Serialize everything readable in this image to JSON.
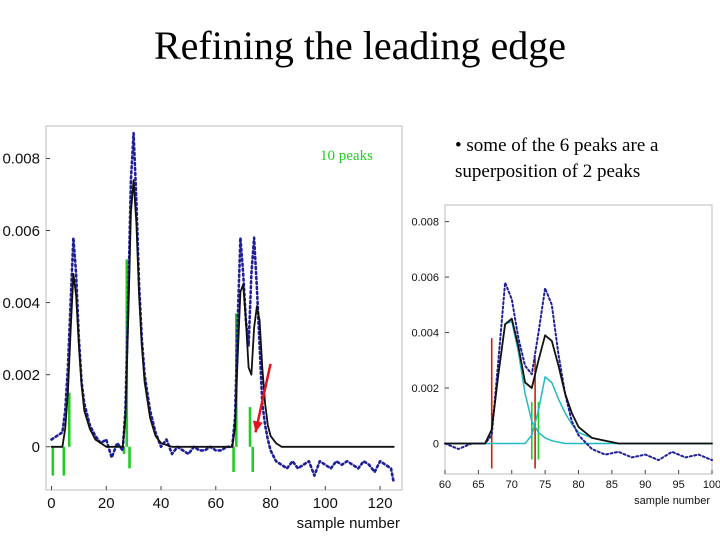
{
  "slide": {
    "title": "Refining the leading edge",
    "bullet": "• some of the 6 peaks are a superposition of 2 peaks"
  },
  "chart_data": [
    {
      "type": "line",
      "xlabel": "sample number",
      "ylabel": "",
      "xlim": [
        -2,
        128
      ],
      "ylim": [
        -0.0012,
        0.0089
      ],
      "xticks": [
        0,
        20,
        40,
        60,
        80,
        100,
        120
      ],
      "yticks": [
        0,
        0.002,
        0.004,
        0.006,
        0.008
      ],
      "ytick_labels": [
        "0",
        "0.002",
        "0.004",
        "0.006",
        "0.008"
      ],
      "annotation": "10 peaks",
      "colors": {
        "fit": "#111111",
        "data": "#1f1f9a",
        "peaks": "#22cc22",
        "arrow": "#e0141e"
      },
      "series": [
        {
          "style": "dotted",
          "x": [
            0,
            2,
            4,
            5,
            6,
            7,
            8,
            9,
            10,
            11,
            12,
            14,
            16,
            18,
            20,
            22,
            24,
            26,
            27,
            28,
            29,
            30,
            31,
            32,
            33,
            34,
            36,
            38,
            40,
            42,
            44,
            46,
            48,
            50,
            52,
            54,
            56,
            58,
            60,
            62,
            64,
            66,
            67,
            68,
            69,
            70,
            71,
            72,
            73,
            74,
            75,
            76,
            77,
            78,
            79,
            80,
            82,
            84,
            86,
            88,
            90,
            92,
            94,
            96,
            98,
            100,
            102,
            104,
            106,
            108,
            110,
            112,
            114,
            116,
            118,
            120,
            122,
            124,
            125
          ],
          "y": [
            0.0002,
            0.0003,
            0.0004,
            0.001,
            0.0022,
            0.004,
            0.0058,
            0.0048,
            0.003,
            0.0018,
            0.0012,
            0.0006,
            0.0003,
            0.0001,
            0.0002,
            -0.0003,
            0.0001,
            -0.0001,
            0.001,
            0.004,
            0.0074,
            0.0087,
            0.0068,
            0.0045,
            0.003,
            0.002,
            0.001,
            0.0004,
            0.0,
            0.0002,
            -0.0002,
            0.0,
            -0.0001,
            -0.0002,
            0.0,
            -0.0001,
            -0.0001,
            0.0,
            -0.0001,
            -0.0001,
            0.0,
            0.0,
            0.0008,
            0.0035,
            0.0058,
            0.0048,
            0.0035,
            0.0028,
            0.0048,
            0.0058,
            0.0044,
            0.0028,
            0.0012,
            0.0006,
            0.0002,
            -0.0001,
            -0.0004,
            -0.0005,
            -0.0006,
            -0.0004,
            -0.0006,
            -0.0005,
            -0.0004,
            -0.0008,
            -0.0004,
            -0.0005,
            -0.0006,
            -0.0004,
            -0.0005,
            -0.0004,
            -0.0005,
            -0.0006,
            -0.0004,
            -0.0005,
            -0.0007,
            -0.0004,
            -0.0005,
            -0.0006,
            -0.001
          ]
        },
        {
          "style": "solid",
          "x": [
            0,
            2,
            4,
            5,
            6,
            7,
            8,
            9,
            10,
            11,
            12,
            14,
            16,
            18,
            20,
            22,
            24,
            26,
            27,
            28,
            29,
            30,
            31,
            32,
            33,
            34,
            36,
            38,
            40,
            44,
            50,
            60,
            66,
            67,
            68,
            69,
            70,
            71,
            72,
            73,
            74,
            75,
            76,
            77,
            78,
            79,
            80,
            82,
            84,
            90,
            100,
            110,
            120,
            125
          ],
          "y": [
            0.0,
            0.0,
            0.0,
            0.0005,
            0.0015,
            0.0032,
            0.0048,
            0.0042,
            0.0028,
            0.0017,
            0.001,
            0.0005,
            0.0002,
            0.0001,
            0.0,
            0.0,
            0.0,
            0.0,
            0.0008,
            0.0035,
            0.0065,
            0.0074,
            0.0062,
            0.0042,
            0.0028,
            0.0018,
            0.0008,
            0.0003,
            0.0001,
            0.0,
            0.0,
            0.0,
            0.0,
            0.0005,
            0.0025,
            0.0043,
            0.0045,
            0.0035,
            0.0022,
            0.002,
            0.0033,
            0.0039,
            0.0035,
            0.0022,
            0.0012,
            0.0006,
            0.0003,
            0.0001,
            0.0,
            0.0,
            0.0,
            0.0,
            0.0,
            0.0
          ]
        }
      ],
      "peak_markers": [
        {
          "x": 0.5,
          "value": -0.0008
        },
        {
          "x": 4.5,
          "value": -0.0008
        },
        {
          "x": 6.5,
          "value": 0.0015
        },
        {
          "x": 26.5,
          "value": -0.0002
        },
        {
          "x": 27.5,
          "value": 0.0052
        },
        {
          "x": 28.5,
          "value": -0.0006
        },
        {
          "x": 66.5,
          "value": -0.0007
        },
        {
          "x": 67.5,
          "value": 0.0037
        },
        {
          "x": 72.5,
          "value": 0.0011
        },
        {
          "x": 73.5,
          "value": -0.0007
        }
      ],
      "arrow": {
        "from": [
          80,
          0.0023
        ],
        "to": [
          74.5,
          0.0004
        ]
      }
    },
    {
      "type": "line",
      "xlabel": "sample number",
      "xlim": [
        60,
        100
      ],
      "ylim": [
        -0.0011,
        0.0086
      ],
      "xticks": [
        60,
        65,
        70,
        75,
        80,
        85,
        90,
        95,
        100
      ],
      "yticks": [
        0,
        0.002,
        0.004,
        0.006,
        0.008
      ],
      "ytick_labels": [
        "0",
        "0.002",
        "0.004",
        "0.006",
        "0.008"
      ],
      "colors": {
        "fit": "#111111",
        "data": "#1f1f9a",
        "comp1": "#22b8c4",
        "comp2": "#22b8c4",
        "red": "#cc2200",
        "green": "#22cc22"
      },
      "series": [
        {
          "style": "dotted",
          "x": [
            60,
            62,
            64,
            66,
            67,
            68,
            69,
            70,
            71,
            72,
            73,
            74,
            75,
            76,
            77,
            78,
            79,
            80,
            82,
            84,
            86,
            88,
            90,
            92,
            94,
            96,
            98,
            100
          ],
          "y": [
            0.0,
            -0.0002,
            0.0,
            0.0,
            0.0003,
            0.003,
            0.0058,
            0.0052,
            0.0038,
            0.0028,
            0.0025,
            0.004,
            0.0056,
            0.005,
            0.0032,
            0.0018,
            0.0008,
            0.0003,
            -0.0002,
            -0.0004,
            -0.0003,
            -0.0005,
            -0.0004,
            -0.0006,
            -0.0003,
            -0.0005,
            -0.0004,
            -0.0006
          ]
        },
        {
          "style": "solid",
          "x": [
            60,
            64,
            66,
            67,
            68,
            69,
            70,
            71,
            72,
            73,
            74,
            75,
            76,
            77,
            78,
            79,
            80,
            82,
            84,
            86,
            90,
            95,
            100
          ],
          "y": [
            0.0,
            0.0,
            0.0,
            0.0005,
            0.0025,
            0.0043,
            0.0045,
            0.0035,
            0.0022,
            0.002,
            0.003,
            0.0039,
            0.0037,
            0.0028,
            0.0018,
            0.0011,
            0.0006,
            0.0002,
            0.0001,
            0.0,
            0.0,
            0.0,
            0.0
          ]
        },
        {
          "style": "solid",
          "x": [
            60,
            64,
            66,
            67,
            68,
            69,
            70,
            71,
            72,
            73,
            74,
            75,
            76,
            78,
            80,
            82,
            84,
            86,
            88,
            90,
            95,
            100
          ],
          "y": [
            0.0,
            0.0,
            0.0,
            0.0005,
            0.0025,
            0.0043,
            0.0044,
            0.0033,
            0.0018,
            0.0008,
            0.0004,
            0.0002,
            0.0001,
            0.0,
            0.0,
            0.0,
            0.0,
            0.0,
            0.0,
            0.0,
            0.0,
            0.0
          ]
        },
        {
          "style": "solid",
          "x": [
            60,
            70,
            72,
            73,
            74,
            75,
            76,
            77,
            78,
            79,
            80,
            82,
            84,
            86,
            88,
            90,
            95,
            100
          ],
          "y": [
            0.0,
            0.0,
            0.0,
            0.0003,
            0.0012,
            0.0024,
            0.0022,
            0.0016,
            0.0011,
            0.0007,
            0.0004,
            0.0002,
            0.0001,
            0.0,
            0.0,
            0.0,
            0.0,
            0.0
          ]
        }
      ],
      "peak_markers": [
        {
          "x": 67,
          "value": 0.0038,
          "color": "red"
        },
        {
          "x": 73,
          "value": 0.0015,
          "color": "green"
        },
        {
          "x": 73.5,
          "value": 0.0031,
          "color": "red"
        },
        {
          "x": 74,
          "value": 0.0015,
          "color": "green"
        }
      ]
    }
  ]
}
